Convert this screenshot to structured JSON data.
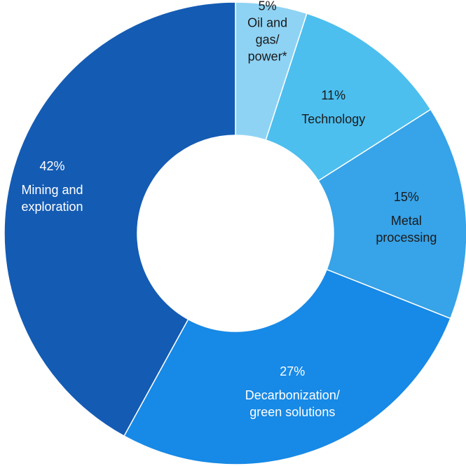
{
  "chart_data": {
    "type": "pie",
    "variant": "donut",
    "categories": [
      "Oil and gas/ power*",
      "Technology",
      "Metal processing",
      "Decarbonization/ green solutions",
      "Mining and exploration"
    ],
    "values": [
      5,
      11,
      15,
      27,
      42
    ],
    "unit": "%",
    "slices": [
      {
        "percent_label": "5%",
        "label_lines": [
          "Oil and",
          "gas/",
          "power*"
        ],
        "color": "#8fd3f4",
        "text_color": "#1a1a1a"
      },
      {
        "percent_label": "11%",
        "label_lines": [
          "Technology"
        ],
        "color": "#4cbfee",
        "text_color": "#1a1a1a"
      },
      {
        "percent_label": "15%",
        "label_lines": [
          "Metal",
          "processing"
        ],
        "color": "#37a3e8",
        "text_color": "#1a1a1a"
      },
      {
        "percent_label": "27%",
        "label_lines": [
          "Decarbonization/",
          "green solutions"
        ],
        "color": "#1789e6",
        "text_color": "#ffffff"
      },
      {
        "percent_label": "42%",
        "label_lines": [
          "Mining and",
          "exploration"
        ],
        "color": "#145bb3",
        "text_color": "#ffffff"
      }
    ],
    "start_angle": "12 o'clock",
    "direction": "clockwise",
    "legend": "none"
  }
}
